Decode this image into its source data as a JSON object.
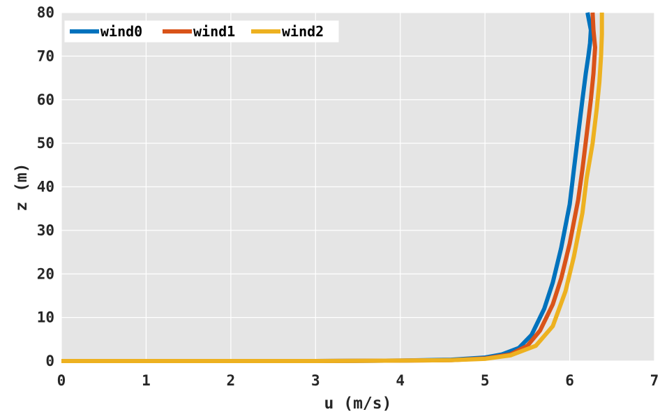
{
  "chart_data": {
    "type": "line",
    "title": "",
    "xlabel": "u (m/s)",
    "ylabel": "z (m)",
    "xlim": [
      0,
      7
    ],
    "ylim": [
      0,
      80
    ],
    "xticks": [
      "0",
      "1",
      "2",
      "3",
      "4",
      "5",
      "6",
      "7"
    ],
    "yticks": [
      "0",
      "10",
      "20",
      "30",
      "40",
      "50",
      "60",
      "70",
      "80"
    ],
    "grid": true,
    "legend_position": "top-left",
    "legend_orientation": "horizontal",
    "background": "#e5e5e5",
    "series": [
      {
        "name": "wind0",
        "color": "#0072BD",
        "x": [
          0,
          1,
          2,
          3,
          4,
          4.6,
          5.0,
          5.2,
          5.4,
          5.55,
          5.7,
          5.8,
          5.9,
          6.0,
          6.05,
          6.1,
          6.15,
          6.19,
          6.22,
          6.24,
          6.25,
          6.21
        ],
        "y": [
          0,
          0,
          0,
          0,
          0.1,
          0.3,
          0.8,
          1.5,
          3,
          6,
          12,
          18,
          26,
          36,
          44,
          52,
          60,
          66,
          70,
          73,
          76,
          80
        ]
      },
      {
        "name": "wind1",
        "color": "#D95319",
        "x": [
          0,
          1,
          2,
          3,
          4,
          4.6,
          5.0,
          5.3,
          5.5,
          5.65,
          5.8,
          5.9,
          6.0,
          6.1,
          6.15,
          6.2,
          6.25,
          6.28,
          6.3,
          6.28,
          6.27
        ],
        "y": [
          0,
          0,
          0,
          0,
          0.1,
          0.2,
          0.6,
          1.5,
          3.5,
          7,
          13,
          19,
          27,
          37,
          44,
          52,
          60,
          66,
          72,
          76,
          80
        ]
      },
      {
        "name": "wind2",
        "color": "#EDB120",
        "x": [
          0,
          1,
          2,
          3,
          4,
          4.6,
          5.0,
          5.3,
          5.6,
          5.8,
          5.95,
          6.05,
          6.15,
          6.2,
          6.27,
          6.32,
          6.35,
          6.37,
          6.38,
          6.38
        ],
        "y": [
          0,
          0,
          0,
          0,
          0.1,
          0.2,
          0.5,
          1.3,
          3.5,
          8,
          16,
          24,
          34,
          42,
          50,
          58,
          64,
          70,
          75,
          80
        ]
      }
    ]
  }
}
